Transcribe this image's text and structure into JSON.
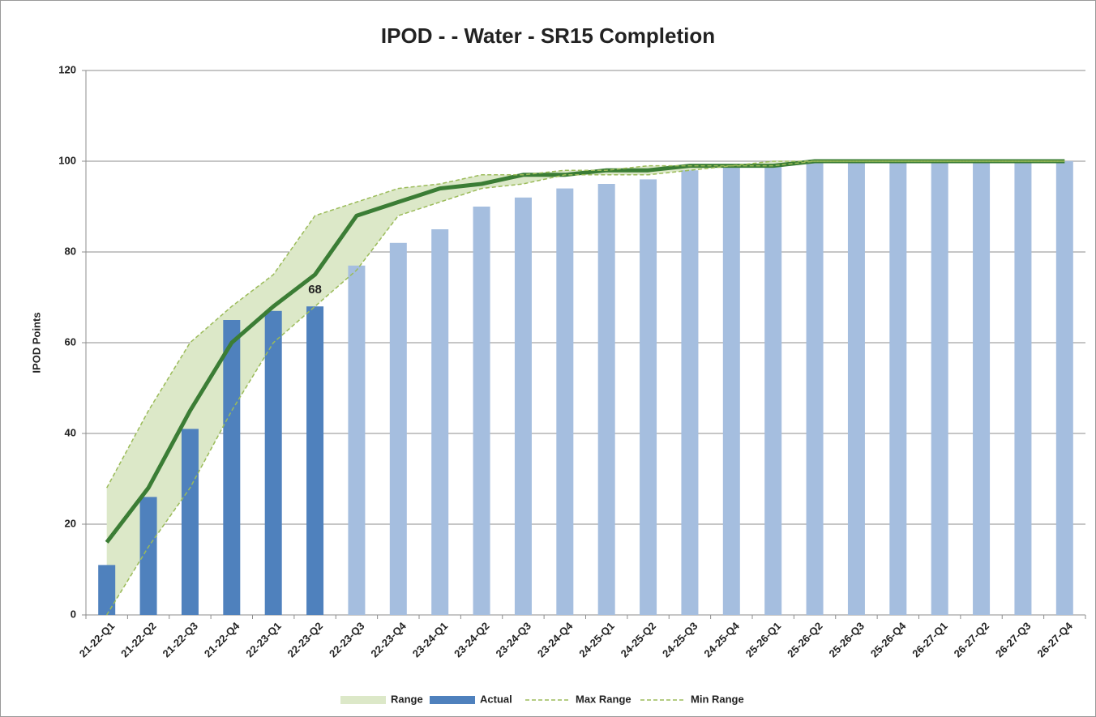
{
  "chart_data": {
    "type": "bar",
    "title": "IPOD -  - Water - SR15 Completion",
    "y_label": "IPOD Points",
    "categories": [
      "21-22-Q1",
      "21-22-Q2",
      "21-22-Q3",
      "21-22-Q4",
      "22-23-Q1",
      "22-23-Q2",
      "22-23-Q3",
      "22-23-Q4",
      "23-24-Q1",
      "23-24-Q2",
      "23-24-Q3",
      "23-24-Q4",
      "24-25-Q1",
      "24-25-Q2",
      "24-25-Q3",
      "24-25-Q4",
      "25-26-Q1",
      "25-26-Q2",
      "25-26-Q3",
      "25-26-Q4",
      "26-27-Q1",
      "26-27-Q2",
      "26-27-Q3",
      "26-27-Q4"
    ],
    "series": [
      {
        "name": "Range",
        "type": "band",
        "color": "#dce8c8"
      },
      {
        "name": "Actual",
        "type": "bar",
        "color": "#4f81bd",
        "values": [
          11,
          26,
          41,
          65,
          67,
          68,
          null,
          null,
          null,
          null,
          null,
          null,
          null,
          null,
          null,
          null,
          null,
          null,
          null,
          null,
          null,
          null,
          null,
          null
        ],
        "value_labels": [
          null,
          null,
          null,
          null,
          null,
          "68",
          null,
          null,
          null,
          null,
          null,
          null,
          null,
          null,
          null,
          null,
          null,
          null,
          null,
          null,
          null,
          null,
          null,
          null
        ]
      },
      {
        "type": "bar",
        "color": "#a5bedf",
        "values": [
          null,
          null,
          null,
          null,
          null,
          null,
          77,
          82,
          85,
          90,
          92,
          94,
          95,
          96,
          98,
          99,
          99,
          100,
          100,
          100,
          100,
          100,
          100,
          100
        ]
      },
      {
        "type": "line",
        "color": "#3b7d35",
        "values": [
          16,
          28,
          45,
          60,
          68,
          75,
          88,
          91,
          94,
          95,
          97,
          97,
          98,
          98,
          99,
          99,
          99,
          100,
          100,
          100,
          100,
          100,
          100,
          100
        ]
      },
      {
        "name": "Max Range",
        "type": "dashed",
        "color": "#9bbb59",
        "values": [
          28,
          45,
          60,
          68,
          75,
          88,
          91,
          94,
          95,
          97,
          97,
          98,
          98,
          99,
          99,
          99,
          100,
          100,
          100,
          100,
          100,
          100,
          100,
          100
        ]
      },
      {
        "name": "Min Range",
        "type": "dashed",
        "color": "#9bbb59",
        "values": [
          0,
          15,
          28,
          45,
          60,
          68,
          76,
          88,
          91,
          94,
          95,
          97,
          97,
          97,
          98,
          99,
          99,
          100,
          100,
          100,
          100,
          100,
          100,
          100
        ]
      }
    ],
    "ylim": [
      0,
      120
    ],
    "yticks": [
      0,
      20,
      40,
      60,
      80,
      100,
      120
    ],
    "grid": true,
    "legend": "bottom"
  }
}
